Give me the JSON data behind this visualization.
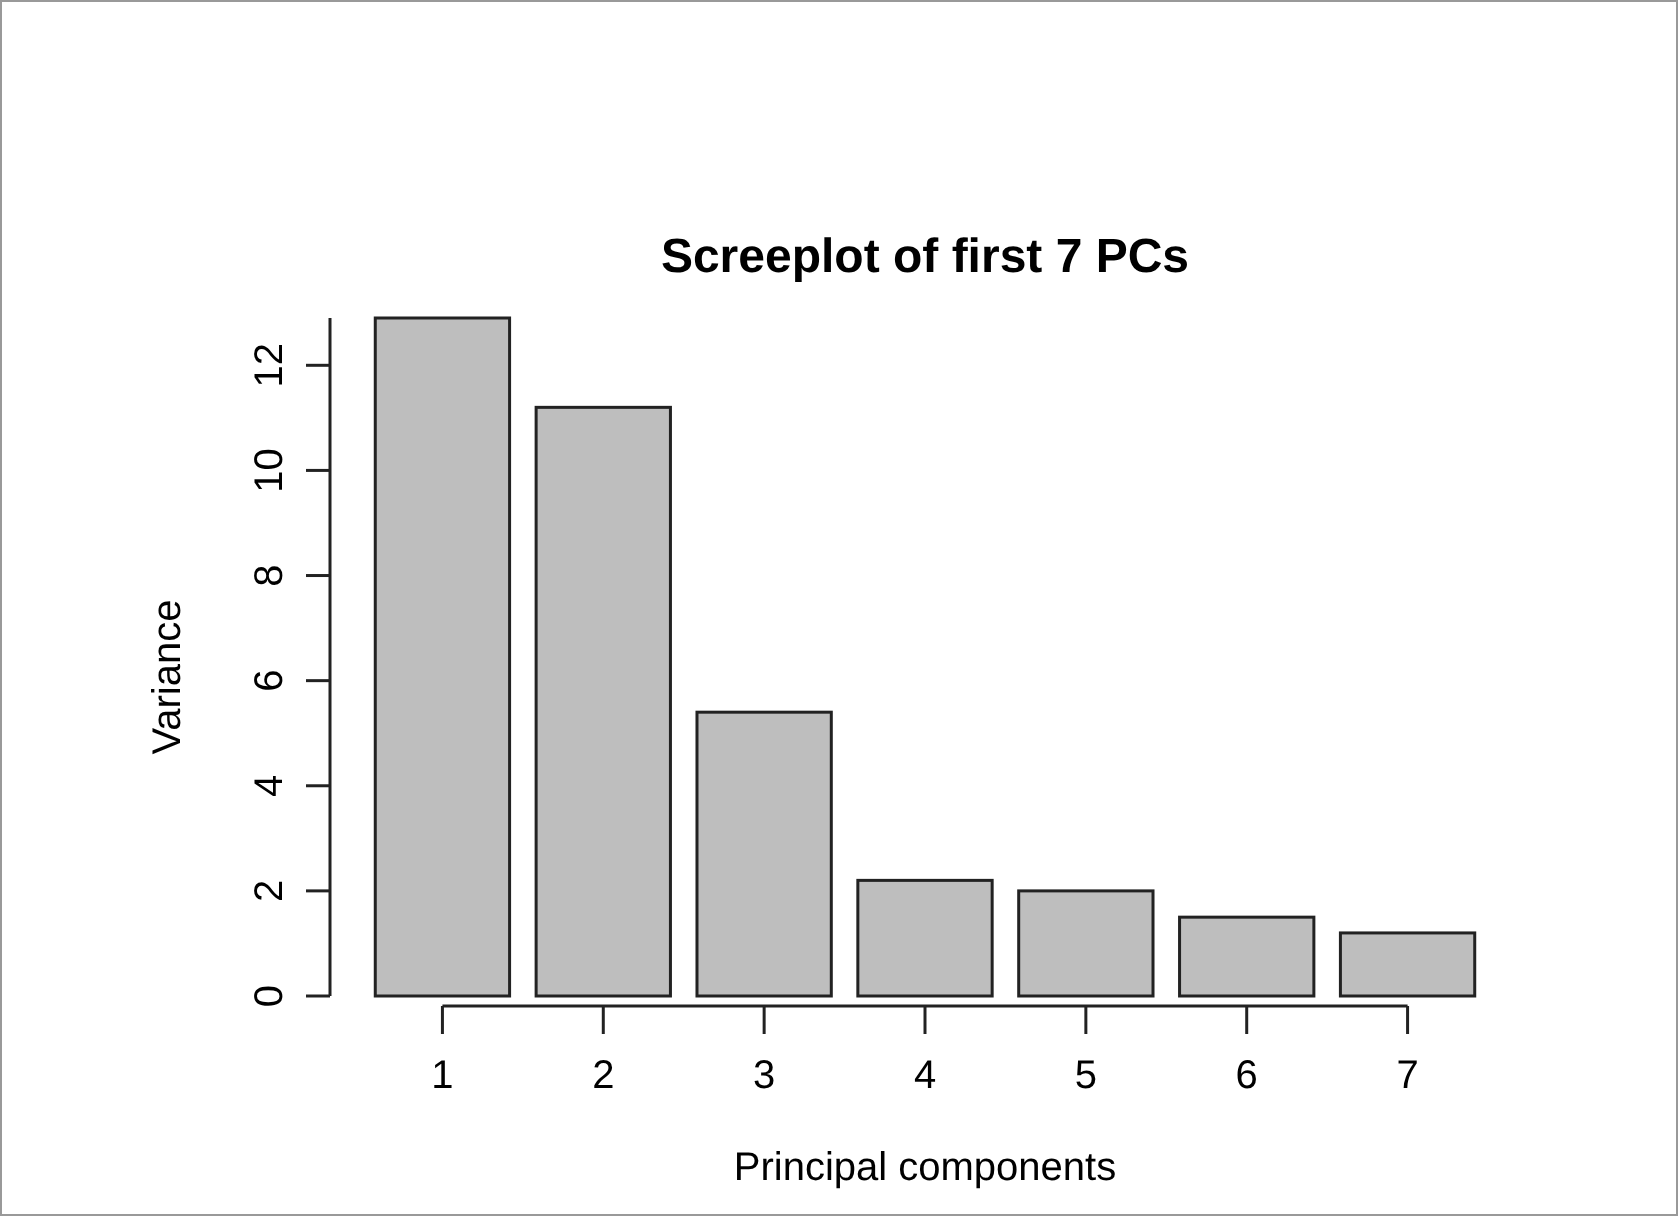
{
  "chart_data": {
    "type": "bar",
    "title": "Screeplot of first 7 PCs",
    "xlabel": "Principal components",
    "ylabel": "Variance",
    "categories": [
      "1",
      "2",
      "3",
      "4",
      "5",
      "6",
      "7"
    ],
    "values": [
      12.9,
      11.2,
      5.4,
      2.2,
      2.0,
      1.5,
      1.2
    ],
    "color": "#bebebe",
    "ylim": [
      0,
      12.9
    ],
    "yticks": [
      0,
      2,
      4,
      6,
      8,
      10,
      12
    ],
    "grid": false
  }
}
